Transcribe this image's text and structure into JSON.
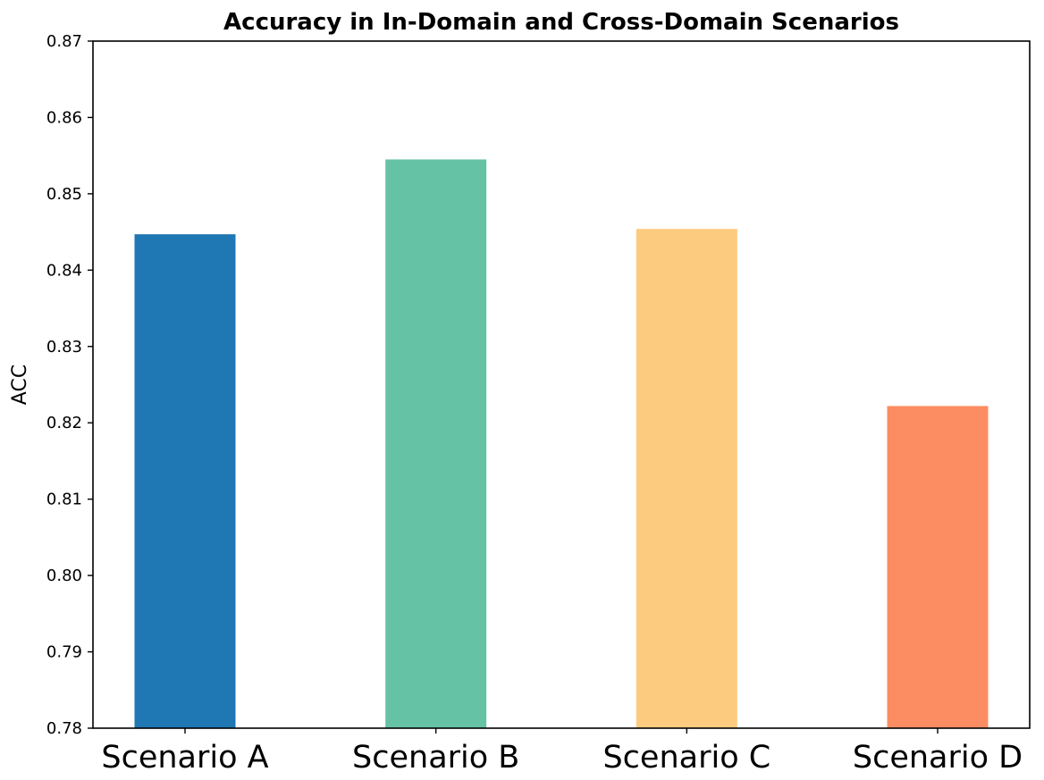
{
  "chart_data": {
    "type": "bar",
    "title": "Accuracy in In-Domain and Cross-Domain Scenarios",
    "xlabel": "",
    "ylabel": "ACC",
    "categories": [
      "Scenario A",
      "Scenario B",
      "Scenario C",
      "Scenario D"
    ],
    "values": [
      0.8447,
      0.8545,
      0.8454,
      0.8222
    ],
    "colors": [
      "#1f77b4",
      "#66c2a5",
      "#fdcb7f",
      "#fc8d62"
    ],
    "ylim": [
      0.78,
      0.87
    ],
    "yticks": [
      "0.78",
      "0.79",
      "0.80",
      "0.81",
      "0.82",
      "0.83",
      "0.84",
      "0.85",
      "0.86",
      "0.87"
    ],
    "grid": false,
    "legend": "none"
  }
}
